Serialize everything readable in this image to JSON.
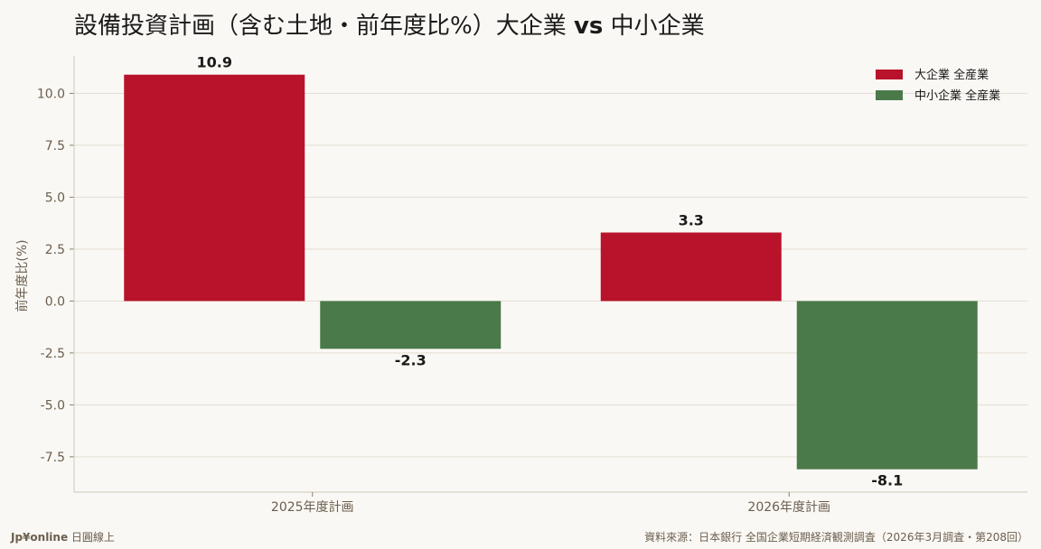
{
  "title_main": "設備投資計画（含む土地・前年度比%）大企業 ",
  "title_vs": "vs",
  "title_tail": " 中小企業",
  "footer": {
    "brand": "Jp¥online",
    "brand_sub": " 日圓線上",
    "source": "資料來源：日本銀行 全国企業短期経済観測調査（2026年3月調査・第208回）"
  },
  "chart_data": {
    "type": "bar",
    "title": "設備投資計画（含む土地・前年度比%）大企業 vs 中小企業",
    "xlabel": "",
    "ylabel": "前年度比(%)",
    "categories": [
      "2025年度計画",
      "2026年度計画"
    ],
    "series": [
      {
        "name": "大企業 全産業",
        "color": "#b8132b",
        "values": [
          10.9,
          3.3
        ]
      },
      {
        "name": "中小企業 全産業",
        "color": "#4a7a4a",
        "values": [
          -2.3,
          -8.1
        ]
      }
    ],
    "ylim": [
      -9.2,
      11.8
    ],
    "yticks": [
      -7.5,
      -5.0,
      -2.5,
      0.0,
      2.5,
      5.0,
      7.5,
      10.0
    ],
    "ytick_labels": [
      "-7.5",
      "-5.0",
      "-2.5",
      "0.0",
      "2.5",
      "5.0",
      "7.5",
      "10.0"
    ],
    "data_labels": [
      [
        "10.9",
        "3.3"
      ],
      [
        "-2.3",
        "-8.1"
      ]
    ],
    "grid": true,
    "legend": "top-right"
  }
}
